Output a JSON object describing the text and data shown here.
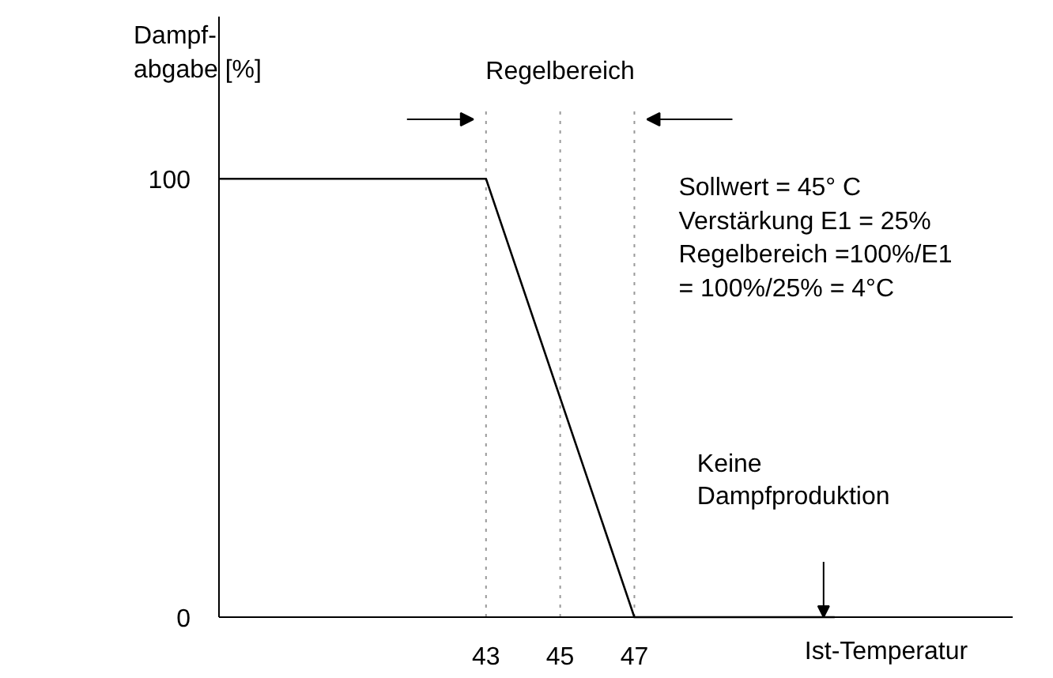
{
  "chart_data": {
    "type": "line",
    "ylabel": "Dampf-\nabgabe [%]",
    "xlabel": "Ist-Temperatur",
    "x": [
      35.8,
      43,
      47,
      52.4
    ],
    "series": [
      {
        "color": "#000000",
        "values": [
          100,
          100,
          0,
          0
        ]
      }
    ],
    "xlim": [
      35.8,
      57.2
    ],
    "ylim": [
      0,
      137
    ],
    "xticks": [
      43,
      45,
      47
    ],
    "yticks": [
      0,
      100
    ],
    "grid": false,
    "marker": "none",
    "line_style": "solid",
    "ref_lines": [
      {
        "axis": "x",
        "value": 43,
        "color": "#999999",
        "line_style": "dotted"
      },
      {
        "axis": "x",
        "value": 45,
        "color": "#999999",
        "line_style": "dotted"
      },
      {
        "axis": "x",
        "value": 47,
        "color": "#999999",
        "line_style": "dotted"
      }
    ],
    "annotations": [
      "Regelbereich",
      "Sollwert =  45° C\nVerstärkung E1 = 25%\nRegelbereich =100%/E1\n= 100%/25% = 4°C",
      "Keine\nDampfproduktion"
    ]
  }
}
